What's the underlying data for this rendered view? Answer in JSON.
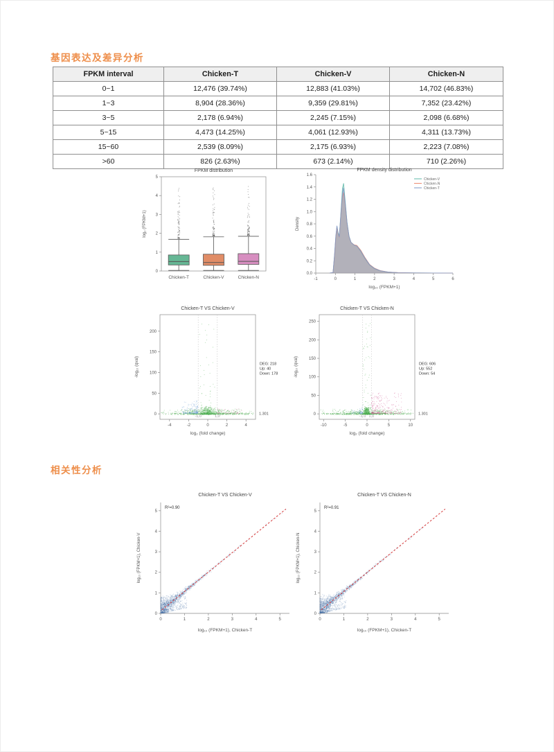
{
  "page": {
    "background": "#ffffff",
    "accent_color": "#ee8e4a"
  },
  "sections": [
    {
      "heading": "基因表达及差异分析"
    },
    {
      "heading": "相关性分析"
    }
  ],
  "table": {
    "headers": [
      "FPKM interval",
      "Chicken-T",
      "Chicken-V",
      "Chicken-N"
    ],
    "rows": [
      [
        "0~1",
        "12,476 (39.74%)",
        "12,883 (41.03%)",
        "14,702 (46.83%)"
      ],
      [
        "1~3",
        "8,904 (28.36%)",
        "9,359 (29.81%)",
        "7,352 (23.42%)"
      ],
      [
        "3~5",
        "2,178 (6.94%)",
        "2,245 (7.15%)",
        "2,098 (6.68%)"
      ],
      [
        "5~15",
        "4,473 (14.25%)",
        "4,061 (12.93%)",
        "4,311 (13.73%)"
      ],
      [
        "15~60",
        "2,539 (8.09%)",
        "2,175 (6.93%)",
        "2,223 (7.08%)"
      ],
      [
        ">60",
        "826 (2.63%)",
        "673 (2.14%)",
        "710 (2.26%)"
      ]
    ]
  },
  "chart_data": [
    {
      "id": "fpkm_boxplot",
      "type": "box",
      "title": "FPKM distribution",
      "ylabel": "log₂ (FPKM+1)",
      "ylim": [
        0,
        5
      ],
      "yticks": [
        0,
        1,
        2,
        3,
        4,
        5
      ],
      "categories": [
        "Chicken-T",
        "Chicken-V",
        "Chicken-N"
      ],
      "colors": [
        "#66b795",
        "#e18d67",
        "#d78ec0"
      ],
      "boxes": [
        {
          "low": 0.03,
          "q1": 0.32,
          "median": 0.5,
          "q3": 0.85,
          "high": 1.68,
          "outlier_max": 4.4
        },
        {
          "low": 0.03,
          "q1": 0.3,
          "median": 0.45,
          "q3": 0.89,
          "high": 1.81,
          "outlier_max": 4.45
        },
        {
          "low": 0.03,
          "q1": 0.35,
          "median": 0.51,
          "q3": 0.92,
          "high": 1.84,
          "outlier_max": 4.72
        }
      ]
    },
    {
      "id": "fpkm_density",
      "type": "area",
      "title": "FPKM density distribution",
      "xlabel": "log₁₀ (FPKM+1)",
      "ylabel": "Density",
      "xlim": [
        -1,
        6
      ],
      "ylim": [
        0,
        1.6
      ],
      "xticks": [
        -1,
        0,
        1,
        2,
        3,
        4,
        5,
        6
      ],
      "yticks": [
        0,
        0.2,
        0.4,
        0.6,
        0.8,
        1.0,
        1.2,
        1.4,
        1.6
      ],
      "legend_position": "top-right",
      "x": [
        -0.3,
        -0.12,
        -0.04,
        0.02,
        0.08,
        0.14,
        0.2,
        0.28,
        0.36,
        0.42,
        0.5,
        0.6,
        0.7,
        0.8,
        0.95,
        1.1,
        1.3,
        1.5,
        1.75,
        2.0,
        2.3,
        2.7,
        3.2,
        4.0,
        5.0,
        6.0
      ],
      "series": [
        {
          "name": "Chicken-V",
          "color": "#5fb8a8",
          "values": [
            0,
            0.01,
            0.3,
            0.58,
            0.76,
            0.66,
            0.6,
            0.98,
            1.38,
            1.46,
            1.18,
            0.82,
            0.6,
            0.5,
            0.46,
            0.44,
            0.35,
            0.24,
            0.13,
            0.07,
            0.035,
            0.015,
            0.007,
            0.003,
            0.001,
            0
          ]
        },
        {
          "name": "Chicken-N",
          "color": "#ec8b70",
          "values": [
            0,
            0.01,
            0.28,
            0.56,
            0.75,
            0.64,
            0.58,
            0.94,
            1.24,
            1.31,
            1.12,
            0.8,
            0.59,
            0.5,
            0.46,
            0.45,
            0.37,
            0.26,
            0.14,
            0.08,
            0.04,
            0.017,
            0.008,
            0.003,
            0.001,
            0
          ]
        },
        {
          "name": "Chicken-T",
          "color": "#7e97c6",
          "values": [
            0,
            0.01,
            0.32,
            0.6,
            0.77,
            0.65,
            0.59,
            0.96,
            1.3,
            1.385,
            1.15,
            0.81,
            0.595,
            0.5,
            0.455,
            0.44,
            0.36,
            0.25,
            0.135,
            0.075,
            0.038,
            0.016,
            0.007,
            0.003,
            0.001,
            0
          ]
        }
      ]
    },
    {
      "id": "volcano_t_vs_v",
      "type": "scatter",
      "subtype": "volcano",
      "title": "Chicken-T VS Chicken-V",
      "xlabel": "log₂ (fold change)",
      "ylabel": "-log₁₀ (qval)",
      "xlim": [
        -5,
        5
      ],
      "xticks": [
        -4,
        -2,
        0,
        2,
        4
      ],
      "ylim": [
        0,
        240
      ],
      "yticks": [
        0,
        50,
        100,
        150,
        200
      ],
      "fc_thresholds": [
        -1.0,
        1.0
      ],
      "fc_threshold_labels": [
        "-1.0",
        "1.0"
      ],
      "q_threshold": 1.301,
      "q_threshold_label": "1.301",
      "annotation": [
        "DEG: 218",
        "Up: 40",
        "Down: 178"
      ],
      "counts": {
        "up": 40,
        "down": 178
      },
      "colors": {
        "up": "#d05a93",
        "down": "#6f9ed6",
        "nonsig": "#4fae52"
      }
    },
    {
      "id": "volcano_t_vs_n",
      "type": "scatter",
      "subtype": "volcano",
      "title": "Chicken-T VS Chicken-N",
      "xlabel": "log₂ (fold change)",
      "ylabel": "-log₁₀ (qval)",
      "xlim": [
        -11,
        11
      ],
      "xticks": [
        -10,
        -5,
        0,
        5,
        10
      ],
      "ylim": [
        0,
        268
      ],
      "yticks": [
        0,
        50,
        100,
        150,
        200,
        250
      ],
      "fc_thresholds": [
        -1.0,
        1.0
      ],
      "fc_threshold_labels": [
        "-1.0",
        "1.0"
      ],
      "q_threshold": 1.301,
      "q_threshold_label": "1.301",
      "annotation": [
        "DEG: 606",
        "Up: 552",
        "Down: 54"
      ],
      "counts": {
        "up": 552,
        "down": 54
      },
      "colors": {
        "up": "#d05a93",
        "down": "#6f9ed6",
        "nonsig": "#4fae52"
      }
    },
    {
      "id": "correlation_t_vs_v",
      "type": "scatter",
      "subtype": "correlation",
      "title": "Chicken-T VS Chicken-V",
      "r2_label": "R²=0.90",
      "xlabel": "log₁₀ (FPKM+1), Chicken-T",
      "ylabel": "log₁₀ (FPKM+1), Chicken-V",
      "xlim": [
        0,
        5
      ],
      "ylim": [
        0,
        5
      ],
      "xticks": [
        0,
        1,
        2,
        3,
        4,
        5
      ],
      "yticks": [
        0,
        1,
        2,
        3,
        4,
        5
      ],
      "point_color": "#4d74a8",
      "line_color": "#d63b3b"
    },
    {
      "id": "correlation_t_vs_n",
      "type": "scatter",
      "subtype": "correlation",
      "title": "Chicken-T VS Chicken-N",
      "r2_label": "R²=0.91",
      "xlabel": "log₁₀ (FPKM+1), Chicken-T",
      "ylabel": "log₁₀ (FPKM+1), Chicken-N",
      "xlim": [
        0,
        5
      ],
      "ylim": [
        0,
        5
      ],
      "xticks": [
        0,
        1,
        2,
        3,
        4,
        5
      ],
      "yticks": [
        0,
        1,
        2,
        3,
        4,
        5
      ],
      "point_color": "#4d74a8",
      "line_color": "#d63b3b"
    }
  ]
}
